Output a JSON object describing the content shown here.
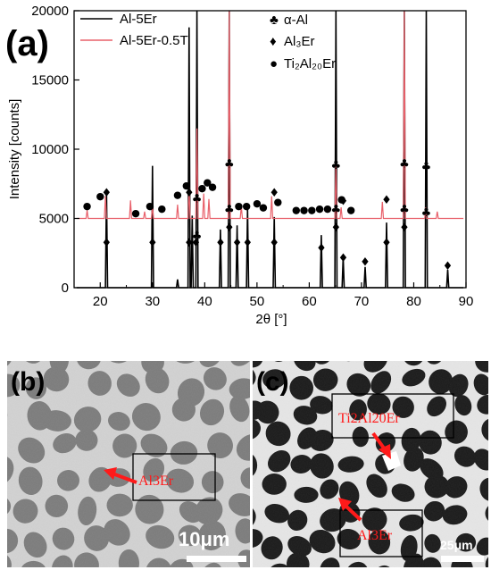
{
  "panel_a": {
    "label": "(a)",
    "legend": {
      "series_lines": [
        "Al-5Er",
        "Al-5Er-0.5Ti"
      ],
      "symbols": [
        {
          "symbol": "♣",
          "label": "α-Al"
        },
        {
          "symbol": "♦",
          "label": "Al₃Er"
        },
        {
          "symbol": "●",
          "label": "Ti₂Al₂₀Er"
        }
      ]
    }
  },
  "chart_data": {
    "type": "line",
    "xlabel": "2θ [°]",
    "ylabel": "Intensity [counts]",
    "xlim": [
      15,
      90
    ],
    "ylim": [
      0,
      20000
    ],
    "x_ticks": [
      20,
      30,
      40,
      50,
      60,
      70,
      80,
      90
    ],
    "y_ticks": [
      0,
      5000,
      10000,
      15000,
      20000
    ],
    "grid": false,
    "legend_position": "top-left",
    "series": [
      {
        "name": "Al-5Er",
        "color": "#000000",
        "baseline": 0,
        "peaks": [
          {
            "x": 21.2,
            "y": 7000
          },
          {
            "x": 30.0,
            "y": 8800
          },
          {
            "x": 34.8,
            "y": 600
          },
          {
            "x": 37.0,
            "y": 18800
          },
          {
            "x": 37.6,
            "y": 5200
          },
          {
            "x": 38.5,
            "y": 20000
          },
          {
            "x": 43.0,
            "y": 4200
          },
          {
            "x": 44.7,
            "y": 20000
          },
          {
            "x": 46.2,
            "y": 4500
          },
          {
            "x": 48.2,
            "y": 5700
          },
          {
            "x": 53.3,
            "y": 5100
          },
          {
            "x": 62.3,
            "y": 3800
          },
          {
            "x": 65.1,
            "y": 20000
          },
          {
            "x": 66.5,
            "y": 2200
          },
          {
            "x": 70.7,
            "y": 1500
          },
          {
            "x": 74.8,
            "y": 4700
          },
          {
            "x": 78.2,
            "y": 20000
          },
          {
            "x": 82.4,
            "y": 20000
          },
          {
            "x": 86.5,
            "y": 1300
          }
        ]
      },
      {
        "name": "Al-5Er-0.5Ti",
        "color": "#e8606a",
        "baseline": 5000,
        "peaks": [
          {
            "x": 17.5,
            "y": 5600
          },
          {
            "x": 21.0,
            "y": 6600
          },
          {
            "x": 25.8,
            "y": 6300
          },
          {
            "x": 28.5,
            "y": 5500
          },
          {
            "x": 30.0,
            "y": 5900
          },
          {
            "x": 34.8,
            "y": 6000
          },
          {
            "x": 37.0,
            "y": 7200
          },
          {
            "x": 38.5,
            "y": 11500
          },
          {
            "x": 39.8,
            "y": 6800
          },
          {
            "x": 40.8,
            "y": 6400
          },
          {
            "x": 44.7,
            "y": 20000
          },
          {
            "x": 47.0,
            "y": 5900
          },
          {
            "x": 52.8,
            "y": 6600
          },
          {
            "x": 65.1,
            "y": 8800
          },
          {
            "x": 66.1,
            "y": 5800
          },
          {
            "x": 74.0,
            "y": 6200
          },
          {
            "x": 78.2,
            "y": 20000
          },
          {
            "x": 82.3,
            "y": 5800
          },
          {
            "x": 84.5,
            "y": 5500
          }
        ]
      }
    ],
    "markers": [
      {
        "symbol": "♦",
        "x": 21.2,
        "y": 3300
      },
      {
        "symbol": "♦",
        "x": 21.2,
        "y": 6900
      },
      {
        "symbol": "♦",
        "x": 30.0,
        "y": 3300
      },
      {
        "symbol": "♦",
        "x": 37.0,
        "y": 3300
      },
      {
        "symbol": "♦",
        "x": 37.0,
        "y": 6900
      },
      {
        "symbol": "♦",
        "x": 38.3,
        "y": 3300
      },
      {
        "symbol": "♦",
        "x": 43.0,
        "y": 3300
      },
      {
        "symbol": "♦",
        "x": 46.2,
        "y": 3300
      },
      {
        "symbol": "♦",
        "x": 48.2,
        "y": 3300
      },
      {
        "symbol": "♦",
        "x": 53.3,
        "y": 3300
      },
      {
        "symbol": "♦",
        "x": 53.3,
        "y": 6900
      },
      {
        "symbol": "♦",
        "x": 62.3,
        "y": 2900
      },
      {
        "symbol": "♦",
        "x": 66.5,
        "y": 2200
      },
      {
        "symbol": "♦",
        "x": 66.5,
        "y": 6300
      },
      {
        "symbol": "♦",
        "x": 70.7,
        "y": 1900
      },
      {
        "symbol": "♦",
        "x": 74.8,
        "y": 3300
      },
      {
        "symbol": "♦",
        "x": 74.8,
        "y": 6400
      },
      {
        "symbol": "♦",
        "x": 86.5,
        "y": 1600
      },
      {
        "symbol": "♦",
        "x": 44.7,
        "y": 4400
      },
      {
        "symbol": "♦",
        "x": 65.1,
        "y": 4400
      },
      {
        "symbol": "♦",
        "x": 78.2,
        "y": 4400
      },
      {
        "symbol": "♣",
        "x": 38.5,
        "y": 3800
      },
      {
        "symbol": "♣",
        "x": 38.5,
        "y": 6500
      },
      {
        "symbol": "♣",
        "x": 44.7,
        "y": 5700
      },
      {
        "symbol": "♣",
        "x": 44.7,
        "y": 9000
      },
      {
        "symbol": "♣",
        "x": 65.1,
        "y": 5700
      },
      {
        "symbol": "♣",
        "x": 65.1,
        "y": 8900
      },
      {
        "symbol": "♣",
        "x": 78.2,
        "y": 5700
      },
      {
        "symbol": "♣",
        "x": 78.2,
        "y": 9000
      },
      {
        "symbol": "♣",
        "x": 82.4,
        "y": 5500
      },
      {
        "symbol": "♣",
        "x": 82.4,
        "y": 8800
      },
      {
        "symbol": "●",
        "x": 17.5,
        "y": 6000
      },
      {
        "symbol": "●",
        "x": 20.0,
        "y": 6700
      },
      {
        "symbol": "●",
        "x": 26.8,
        "y": 5500
      },
      {
        "symbol": "●",
        "x": 29.5,
        "y": 6000
      },
      {
        "symbol": "●",
        "x": 31.8,
        "y": 5800
      },
      {
        "symbol": "●",
        "x": 34.8,
        "y": 6800
      },
      {
        "symbol": "●",
        "x": 36.5,
        "y": 7500
      },
      {
        "symbol": "●",
        "x": 39.5,
        "y": 7300
      },
      {
        "symbol": "●",
        "x": 40.5,
        "y": 7700
      },
      {
        "symbol": "●",
        "x": 41.5,
        "y": 7400
      },
      {
        "symbol": "●",
        "x": 46.5,
        "y": 6000
      },
      {
        "symbol": "●",
        "x": 48.0,
        "y": 6000
      },
      {
        "symbol": "●",
        "x": 50.0,
        "y": 6200
      },
      {
        "symbol": "●",
        "x": 51.2,
        "y": 5900
      },
      {
        "symbol": "●",
        "x": 54.0,
        "y": 6300
      },
      {
        "symbol": "●",
        "x": 57.5,
        "y": 5700
      },
      {
        "symbol": "●",
        "x": 59.0,
        "y": 5700
      },
      {
        "symbol": "●",
        "x": 60.5,
        "y": 5700
      },
      {
        "symbol": "●",
        "x": 62.0,
        "y": 5800
      },
      {
        "symbol": "●",
        "x": 63.5,
        "y": 5800
      },
      {
        "symbol": "●",
        "x": 66.2,
        "y": 6500
      },
      {
        "symbol": "●",
        "x": 68.0,
        "y": 5700
      }
    ]
  },
  "panel_b": {
    "label": "(b)",
    "annotation": "Al3Er",
    "scale_bar": "10μm"
  },
  "panel_c": {
    "label": "(c)",
    "annotations": [
      "Ti2Al20Er",
      "Al3Er"
    ],
    "scale_bar": "25μm"
  },
  "colors": {
    "series_black": "#000000",
    "series_red": "#e8606a",
    "annotation_red": "#ff1a1a"
  }
}
